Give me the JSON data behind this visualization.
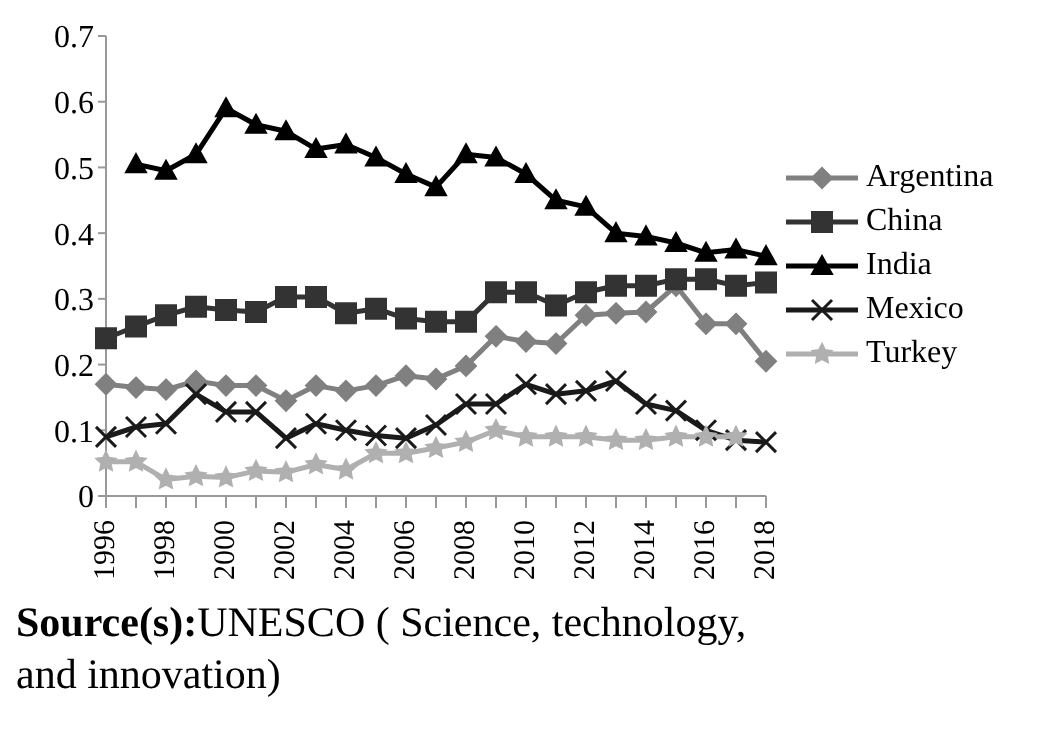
{
  "chart_data": {
    "type": "line",
    "categories": [
      "1996",
      null,
      "1998",
      null,
      "2000",
      null,
      "2002",
      null,
      "2004",
      null,
      "2006",
      null,
      "2008",
      null,
      "2010",
      null,
      "2012",
      null,
      "2014",
      null,
      "2016",
      null,
      "2018"
    ],
    "ylim": [
      0,
      0.7
    ],
    "yticks": [
      0,
      0.1,
      0.2,
      0.3,
      0.4,
      0.5,
      0.6,
      0.7
    ],
    "grid": false,
    "legend": "right",
    "line_style": "solid",
    "annotations": [
      "Source(s):UNESCO ( Science, technology, and innovation)"
    ],
    "series": [
      {
        "name": "Argentina",
        "color": "#808080",
        "marker": "diamond",
        "values": [
          0.17,
          0.165,
          0.162,
          0.175,
          0.168,
          0.168,
          0.145,
          0.168,
          0.16,
          0.168,
          0.183,
          0.178,
          0.198,
          0.243,
          0.235,
          0.232,
          0.275,
          0.278,
          0.28,
          0.32,
          0.262,
          0.262,
          0.205
        ]
      },
      {
        "name": "China",
        "color": "#333333",
        "marker": "square",
        "values": [
          0.24,
          0.258,
          0.275,
          0.288,
          0.283,
          0.28,
          0.303,
          0.303,
          0.278,
          0.285,
          0.27,
          0.265,
          0.265,
          0.31,
          0.31,
          0.29,
          0.31,
          0.32,
          0.32,
          0.33,
          0.33,
          0.32,
          0.325
        ]
      },
      {
        "name": "India",
        "color": "#000000",
        "marker": "triangle",
        "values": [
          null,
          0.505,
          0.495,
          0.52,
          0.59,
          0.565,
          0.555,
          0.528,
          0.535,
          0.515,
          0.49,
          0.47,
          0.52,
          0.515,
          0.49,
          0.45,
          0.44,
          0.4,
          0.395,
          0.385,
          0.37,
          0.375,
          0.365
        ]
      },
      {
        "name": "Mexico",
        "color": "#1a1a1a",
        "marker": "cross",
        "values": [
          0.09,
          0.105,
          0.11,
          0.155,
          0.128,
          0.128,
          0.088,
          0.11,
          0.1,
          0.092,
          0.088,
          0.108,
          0.14,
          0.14,
          0.17,
          0.155,
          0.16,
          0.175,
          0.14,
          0.13,
          0.1,
          0.085,
          0.082
        ]
      },
      {
        "name": "Turkey",
        "color": "#b0b0b0",
        "marker": "star",
        "values": [
          0.052,
          0.052,
          0.025,
          0.03,
          0.028,
          0.038,
          0.036,
          0.048,
          0.04,
          0.065,
          0.065,
          0.073,
          0.082,
          0.1,
          0.09,
          0.09,
          0.09,
          0.085,
          0.085,
          0.09,
          0.09,
          0.09,
          null
        ]
      }
    ]
  }
}
